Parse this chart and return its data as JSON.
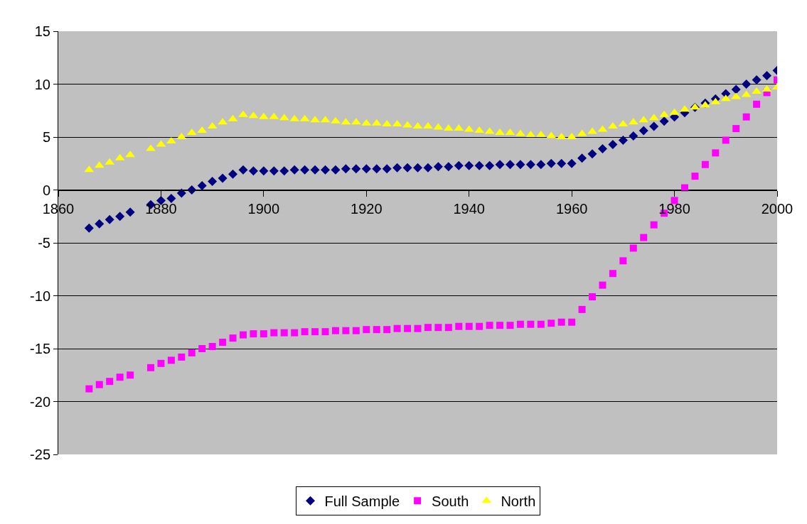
{
  "chart_data": {
    "type": "scatter",
    "x": [
      1866,
      1868,
      1870,
      1872,
      1874,
      1878,
      1880,
      1882,
      1884,
      1886,
      1888,
      1890,
      1892,
      1894,
      1896,
      1898,
      1900,
      1902,
      1904,
      1906,
      1908,
      1910,
      1912,
      1914,
      1916,
      1918,
      1920,
      1922,
      1924,
      1926,
      1928,
      1930,
      1932,
      1934,
      1936,
      1938,
      1940,
      1942,
      1944,
      1946,
      1948,
      1950,
      1952,
      1954,
      1956,
      1958,
      1960,
      1962,
      1964,
      1966,
      1968,
      1970,
      1972,
      1974,
      1976,
      1978,
      1980,
      1982,
      1984,
      1986,
      1988,
      1990,
      1992,
      1994,
      1996,
      1998,
      2000
    ],
    "series": [
      {
        "name": "Full Sample",
        "color": "#000080",
        "marker": "diamond",
        "values": [
          -3.6,
          -3.2,
          -2.8,
          -2.5,
          -2.1,
          -1.4,
          -1.0,
          -0.8,
          -0.3,
          0.0,
          0.4,
          0.8,
          1.1,
          1.5,
          1.9,
          1.8,
          1.8,
          1.8,
          1.8,
          1.9,
          1.9,
          1.9,
          1.9,
          1.9,
          2.0,
          2.0,
          2.0,
          2.0,
          2.0,
          2.1,
          2.1,
          2.1,
          2.1,
          2.2,
          2.2,
          2.3,
          2.3,
          2.3,
          2.3,
          2.4,
          2.4,
          2.4,
          2.4,
          2.4,
          2.5,
          2.5,
          2.5,
          3.0,
          3.4,
          3.9,
          4.3,
          4.7,
          5.1,
          5.6,
          6.0,
          6.5,
          6.9,
          7.3,
          7.8,
          8.2,
          8.6,
          9.1,
          9.5,
          10.0,
          10.4,
          10.8,
          11.3
        ]
      },
      {
        "name": "South",
        "color": "#ff00ff",
        "marker": "square",
        "values": [
          -18.8,
          -18.4,
          -18.1,
          -17.7,
          -17.5,
          -16.8,
          -16.4,
          -16.1,
          -15.8,
          -15.4,
          -15.0,
          -14.8,
          -14.4,
          -14.0,
          -13.7,
          -13.6,
          -13.6,
          -13.5,
          -13.5,
          -13.5,
          -13.4,
          -13.4,
          -13.4,
          -13.3,
          -13.3,
          -13.3,
          -13.2,
          -13.2,
          -13.2,
          -13.1,
          -13.1,
          -13.1,
          -13.0,
          -13.0,
          -13.0,
          -12.9,
          -12.9,
          -12.9,
          -12.8,
          -12.8,
          -12.8,
          -12.7,
          -12.7,
          -12.7,
          -12.6,
          -12.5,
          -12.5,
          -11.3,
          -10.1,
          -9.0,
          -7.9,
          -6.7,
          -5.5,
          -4.5,
          -3.3,
          -2.2,
          -1.0,
          0.2,
          1.3,
          2.4,
          3.5,
          4.7,
          5.8,
          6.9,
          8.1,
          9.2,
          10.4
        ]
      },
      {
        "name": "North",
        "color": "#ffff00",
        "marker": "triangle",
        "values": [
          1.9,
          2.3,
          2.6,
          3.0,
          3.3,
          3.9,
          4.3,
          4.6,
          5.0,
          5.4,
          5.6,
          6.0,
          6.4,
          6.7,
          7.1,
          7.0,
          6.9,
          6.9,
          6.8,
          6.7,
          6.7,
          6.6,
          6.6,
          6.5,
          6.4,
          6.4,
          6.3,
          6.3,
          6.2,
          6.2,
          6.1,
          6.0,
          6.0,
          5.9,
          5.8,
          5.8,
          5.7,
          5.6,
          5.5,
          5.4,
          5.4,
          5.3,
          5.2,
          5.2,
          5.1,
          5.0,
          5.0,
          5.3,
          5.5,
          5.7,
          6.0,
          6.2,
          6.4,
          6.6,
          6.8,
          7.1,
          7.3,
          7.6,
          7.8,
          8.0,
          8.3,
          8.6,
          8.8,
          9.0,
          9.3,
          9.5,
          9.7
        ]
      }
    ],
    "xlim": [
      1860,
      2000
    ],
    "xticks": [
      1860,
      1880,
      1900,
      1920,
      1940,
      1960,
      1980,
      2000
    ],
    "ylim": [
      -25,
      15
    ],
    "yticks": [
      -25,
      -20,
      -15,
      -10,
      -5,
      0,
      5,
      10,
      15
    ],
    "grid": "y",
    "legend": "bottom"
  }
}
